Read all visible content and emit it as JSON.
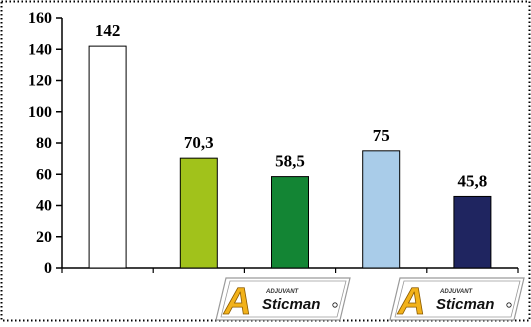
{
  "chart_data": {
    "type": "bar",
    "categories": [
      "",
      "",
      "",
      "",
      ""
    ],
    "values": [
      142,
      70.3,
      58.5,
      75,
      45.8
    ],
    "data_labels": [
      "142",
      "70,3",
      "58,5",
      "75",
      "45,8"
    ],
    "bar_colors": [
      "#ffffff",
      "#a1c21b",
      "#138534",
      "#a9cce9",
      "#1f2560"
    ],
    "title": "",
    "xlabel": "",
    "ylabel": "",
    "ylim": [
      0,
      160
    ],
    "yticks": [
      0,
      20,
      40,
      60,
      80,
      100,
      120,
      140,
      160
    ],
    "ytick_labels": [
      "0",
      "20",
      "40",
      "60",
      "80",
      "100",
      "120",
      "140",
      "160"
    ],
    "grid": false,
    "legend": "none"
  },
  "logos": [
    {
      "brand": "Sticman",
      "small_text": "ADJUVANT",
      "mark": "A"
    },
    {
      "brand": "Sticman",
      "small_text": "ADJUVANT",
      "mark": "A"
    }
  ],
  "colors": {
    "axis": "#000000",
    "border": "#000000",
    "logo_gold": "#f2b21a",
    "logo_gray": "#9a9a9a"
  }
}
